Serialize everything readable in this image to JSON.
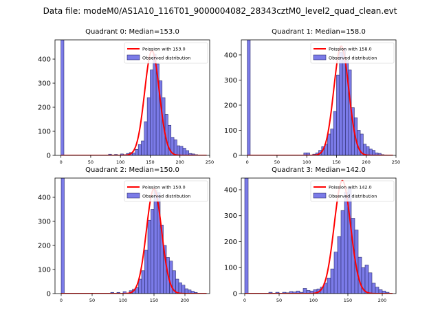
{
  "chart_data": {
    "suptitle": "Data file: modeM0/AS1A10_116T01_9000004082_28343cztM0_level2_quad_clean.evt",
    "panels": [
      {
        "type": "bar",
        "title": "Quadrant 0: Median=153.0",
        "legend": [
          "Poission with 153.0",
          "Observed distribution"
        ],
        "legend_position": "top-right",
        "xlim": [
          -10,
          250
        ],
        "ylim": [
          0,
          480
        ],
        "xticks": [
          0,
          50,
          100,
          150,
          200,
          250
        ],
        "yticks": [
          0,
          100,
          200,
          300,
          400
        ],
        "poisson_mean": 153.0,
        "poisson_peak": 435,
        "bins": [
          [
            0,
            480
          ],
          [
            80,
            5
          ],
          [
            90,
            4
          ],
          [
            100,
            6
          ],
          [
            105,
            3
          ],
          [
            110,
            8
          ],
          [
            115,
            12
          ],
          [
            120,
            10
          ],
          [
            125,
            25
          ],
          [
            130,
            45
          ],
          [
            135,
            60
          ],
          [
            140,
            140
          ],
          [
            145,
            240
          ],
          [
            150,
            355
          ],
          [
            155,
            420
          ],
          [
            160,
            380
          ],
          [
            165,
            310
          ],
          [
            170,
            240
          ],
          [
            175,
            170
          ],
          [
            180,
            125
          ],
          [
            185,
            75
          ],
          [
            190,
            65
          ],
          [
            195,
            40
          ],
          [
            200,
            38
          ],
          [
            205,
            30
          ],
          [
            210,
            20
          ],
          [
            215,
            8
          ],
          [
            220,
            6
          ],
          [
            225,
            3
          ],
          [
            230,
            2
          ]
        ]
      },
      {
        "type": "bar",
        "title": "Quadrant 1: Median=158.0",
        "legend": [
          "Poission with 158.0",
          "Observed distribution"
        ],
        "legend_position": "top-right",
        "xlim": [
          -10,
          250
        ],
        "ylim": [
          0,
          460
        ],
        "xticks": [
          0,
          50,
          100,
          150,
          200,
          250
        ],
        "yticks": [
          0,
          100,
          200,
          300,
          400
        ],
        "poisson_mean": 158.0,
        "poisson_peak": 435,
        "bins": [
          [
            0,
            460
          ],
          [
            95,
            10
          ],
          [
            100,
            10
          ],
          [
            110,
            5
          ],
          [
            115,
            10
          ],
          [
            120,
            20
          ],
          [
            125,
            35
          ],
          [
            130,
            45
          ],
          [
            135,
            85
          ],
          [
            140,
            105
          ],
          [
            145,
            175
          ],
          [
            150,
            320
          ],
          [
            155,
            410
          ],
          [
            160,
            425
          ],
          [
            165,
            380
          ],
          [
            170,
            340
          ],
          [
            175,
            190
          ],
          [
            180,
            150
          ],
          [
            185,
            100
          ],
          [
            190,
            85
          ],
          [
            195,
            45
          ],
          [
            200,
            35
          ],
          [
            205,
            25
          ],
          [
            210,
            20
          ],
          [
            215,
            10
          ],
          [
            220,
            8
          ],
          [
            225,
            3
          ],
          [
            230,
            2
          ]
        ]
      },
      {
        "type": "bar",
        "title": "Quadrant 2: Median=150.0",
        "legend": [
          "Poission with 150.0",
          "Observed distribution"
        ],
        "legend_position": "top-right",
        "xlim": [
          -10,
          240
        ],
        "ylim": [
          0,
          480
        ],
        "xticks": [
          0,
          50,
          100,
          150,
          200
        ],
        "yticks": [
          0,
          100,
          200,
          300,
          400
        ],
        "poisson_mean": 150.0,
        "poisson_peak": 435,
        "bins": [
          [
            0,
            480
          ],
          [
            80,
            5
          ],
          [
            90,
            5
          ],
          [
            100,
            8
          ],
          [
            110,
            12
          ],
          [
            115,
            18
          ],
          [
            120,
            25
          ],
          [
            125,
            60
          ],
          [
            130,
            95
          ],
          [
            135,
            180
          ],
          [
            140,
            305
          ],
          [
            145,
            350
          ],
          [
            150,
            430
          ],
          [
            155,
            420
          ],
          [
            160,
            285
          ],
          [
            165,
            200
          ],
          [
            170,
            150
          ],
          [
            175,
            135
          ],
          [
            180,
            95
          ],
          [
            185,
            60
          ],
          [
            190,
            45
          ],
          [
            195,
            35
          ],
          [
            200,
            20
          ],
          [
            205,
            15
          ],
          [
            210,
            10
          ],
          [
            215,
            5
          ],
          [
            220,
            2
          ]
        ]
      },
      {
        "type": "bar",
        "title": "Quadrant 3: Median=142.0",
        "legend": [
          "Poission with 142.0",
          "Observed distribution"
        ],
        "legend_position": "top-right",
        "xlim": [
          -5,
          220
        ],
        "ylim": [
          0,
          445
        ],
        "xticks": [
          0,
          50,
          100,
          150,
          200
        ],
        "yticks": [
          0,
          100,
          200,
          300,
          400
        ],
        "poisson_mean": 142.0,
        "poisson_peak": 435,
        "bins": [
          [
            0,
            445
          ],
          [
            35,
            5
          ],
          [
            45,
            5
          ],
          [
            55,
            5
          ],
          [
            60,
            3
          ],
          [
            65,
            8
          ],
          [
            70,
            6
          ],
          [
            75,
            10
          ],
          [
            80,
            5
          ],
          [
            85,
            20
          ],
          [
            90,
            12
          ],
          [
            95,
            10
          ],
          [
            100,
            15
          ],
          [
            105,
            18
          ],
          [
            110,
            25
          ],
          [
            115,
            40
          ],
          [
            120,
            60
          ],
          [
            125,
            95
          ],
          [
            130,
            160
          ],
          [
            135,
            220
          ],
          [
            140,
            320
          ],
          [
            145,
            390
          ],
          [
            150,
            410
          ],
          [
            155,
            290
          ],
          [
            160,
            245
          ],
          [
            165,
            140
          ],
          [
            170,
            100
          ],
          [
            175,
            110
          ],
          [
            180,
            80
          ],
          [
            185,
            40
          ],
          [
            190,
            25
          ],
          [
            195,
            15
          ],
          [
            200,
            10
          ],
          [
            205,
            5
          ]
        ]
      }
    ]
  },
  "colors": {
    "bar_fill": "#7b7be8",
    "bar_edge": "#2b2b6b",
    "curve": "#ff0000"
  }
}
